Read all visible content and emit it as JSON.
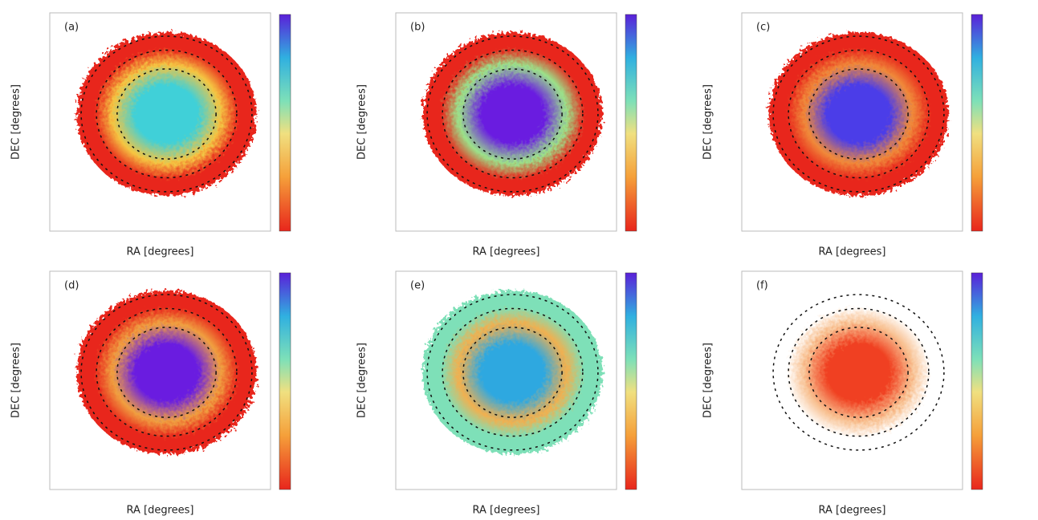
{
  "panels": [
    {
      "label": "(a)",
      "xlabel": "RA [degrees]",
      "ylabel": "DEC [degrees]",
      "center_color": "#3fd0d8",
      "mid_color": "#f5c542",
      "edge_color": "#e8261c"
    },
    {
      "label": "(b)",
      "xlabel": "RA [degrees]",
      "ylabel": "DEC [degrees]",
      "center_color": "#6a1fe0",
      "mid_color": "#9be28a",
      "edge_color": "#e8261c"
    },
    {
      "label": "(c)",
      "xlabel": "RA [degrees]",
      "ylabel": "DEC [degrees]",
      "center_color": "#4c3de8",
      "mid_color": "#f08a3a",
      "edge_color": "#e8261c"
    },
    {
      "label": "(d)",
      "xlabel": "RA [degrees]",
      "ylabel": "DEC [degrees]",
      "center_color": "#6a1fe0",
      "mid_color": "#f0a040",
      "edge_color": "#e8261c"
    },
    {
      "label": "(e)",
      "xlabel": "RA [degrees]",
      "ylabel": "DEC [degrees]",
      "center_color": "#2fa8e0",
      "mid_color": "#f0b050",
      "edge_color": "#7ee0b8"
    },
    {
      "label": "(f)",
      "xlabel": "RA [degrees]",
      "ylabel": "DEC [degrees]",
      "center_color": "#f04020",
      "mid_color": "#f8c090",
      "edge_color": "#ffffff"
    }
  ]
}
